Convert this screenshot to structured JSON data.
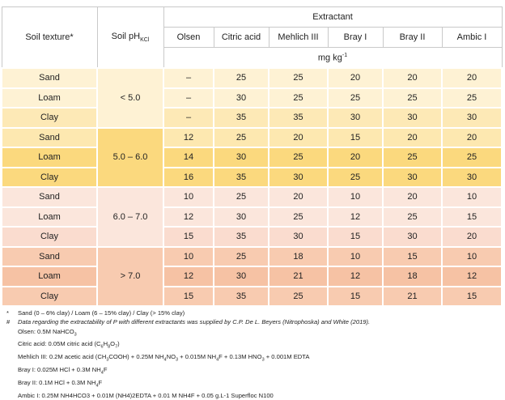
{
  "header": {
    "soil_texture": "Soil texture*",
    "soil_ph": [
      "Soil pH",
      "KCl"
    ],
    "extractant": "Extractant",
    "columns": [
      "Olsen",
      "Citric acid",
      "Mehlich III",
      "Bray I",
      "Bray II",
      "Ambic I"
    ],
    "unit": [
      "mg kg",
      "-1"
    ]
  },
  "groups": [
    {
      "ph": "< 5.0",
      "rows": [
        {
          "texture": "Sand",
          "values": [
            "–",
            25,
            25,
            20,
            20,
            20
          ]
        },
        {
          "texture": "Loam",
          "values": [
            "–",
            30,
            25,
            25,
            25,
            25
          ]
        },
        {
          "texture": "Clay",
          "values": [
            "–",
            35,
            35,
            30,
            30,
            30
          ]
        }
      ]
    },
    {
      "ph": "5.0 – 6.0",
      "rows": [
        {
          "texture": "Sand",
          "values": [
            12,
            25,
            20,
            15,
            20,
            20
          ]
        },
        {
          "texture": "Loam",
          "values": [
            14,
            30,
            25,
            20,
            25,
            25
          ]
        },
        {
          "texture": "Clay",
          "values": [
            16,
            35,
            30,
            25,
            30,
            30
          ]
        }
      ]
    },
    {
      "ph": "6.0 – 7.0",
      "rows": [
        {
          "texture": "Sand",
          "values": [
            10,
            25,
            20,
            10,
            20,
            10
          ]
        },
        {
          "texture": "Loam",
          "values": [
            12,
            30,
            25,
            12,
            25,
            15
          ]
        },
        {
          "texture": "Clay",
          "values": [
            15,
            35,
            30,
            15,
            30,
            20
          ]
        }
      ]
    },
    {
      "ph": "> 7.0",
      "rows": [
        {
          "texture": "Sand",
          "values": [
            10,
            25,
            18,
            10,
            15,
            10
          ]
        },
        {
          "texture": "Loam",
          "values": [
            12,
            30,
            21,
            12,
            18,
            12
          ]
        },
        {
          "texture": "Clay",
          "values": [
            15,
            35,
            25,
            15,
            21,
            15
          ]
        }
      ]
    }
  ],
  "footnotes": [
    {
      "marker": "*",
      "parts": [
        "Sand (0 – 6% clay) / Loam (6 – 15% clay) / Clay (> 15% clay)"
      ]
    },
    {
      "marker": "#",
      "parts": [
        "Data regarding the extractability of P with different extractants was supplied by C.P. De L. Beyers (Nitrophoska) and White (2019)."
      ]
    },
    {
      "parts": [
        "Olsen: 0.5M NaHCO",
        "3"
      ]
    },
    {
      "parts": [
        "Citric acid: 0.05M citric acid (C",
        "6",
        "H",
        "8",
        "O",
        "7",
        ")"
      ]
    },
    {
      "parts": [
        "Mehlich III: 0.2M acetic acid (CH",
        "3",
        "COOH) + 0.25M NH",
        "4",
        "NO",
        "3",
        " + 0.015M NH",
        "4",
        "F + 0.13M HNO",
        "3",
        " + 0.001M EDTA"
      ]
    },
    {
      "parts": [
        "Bray I: 0.025M HCl + 0.3M NH",
        "4",
        "F"
      ]
    },
    {
      "parts": [
        "Bray II: 0.1M HCl + 0.3M NH",
        "4",
        "F"
      ]
    },
    {
      "parts": [
        "Ambic I: 0.25M NH4HCO3 + 0.01M (NH4)2EDTA + 0.01 M NH4F + 0.05 g.L-1 Superfloc N100"
      ]
    }
  ]
}
